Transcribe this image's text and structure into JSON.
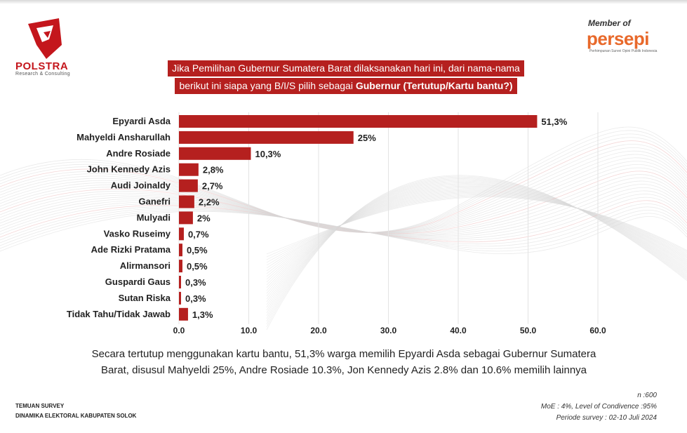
{
  "brand": {
    "name": "POLSTRA",
    "tagline": "Research & Consulting",
    "color": "#c4161c"
  },
  "member": {
    "label": "Member of",
    "org": "persepi",
    "org_sub": "Perhimpunan Survei Opini Publik Indonesia"
  },
  "title": {
    "line1": "Jika Pemilihan Gubernur Sumatera Barat dilaksanakan hari ini, dari nama-nama",
    "line2_pre": "berikut ini siapa yang B/I/S pilih sebagai ",
    "line2_bold": "Gubernur",
    "line2_post": "  (Tertutup/Kartu bantu?)"
  },
  "chart_data": {
    "type": "bar",
    "orientation": "horizontal",
    "categories": [
      "Epyardi Asda",
      "Mahyeldi Ansharullah",
      "Andre Rosiade",
      "John Kennedy Azis",
      "Audi Joinaldy",
      "Ganefri",
      "Mulyadi",
      "Vasko Ruseimy",
      "Ade Rizki Pratama",
      "Alirmansori",
      "Guspardi Gaus",
      "Sutan Riska",
      "Tidak Tahu/Tidak Jawab"
    ],
    "values": [
      51.3,
      25,
      10.3,
      2.8,
      2.7,
      2.2,
      2,
      0.7,
      0.5,
      0.5,
      0.3,
      0.3,
      1.3
    ],
    "value_labels": [
      "51,3%",
      "25%",
      "10,3%",
      "2,8%",
      "2,7%",
      "2,2%",
      "2%",
      "0,7%",
      "0,5%",
      "0,5%",
      "0,3%",
      "0,3%",
      "1,3%"
    ],
    "xlim": [
      0,
      60
    ],
    "x_ticks": [
      "0.0",
      "10.0",
      "20.0",
      "30.0",
      "40.0",
      "50.0",
      "60.0"
    ],
    "grid": true,
    "bar_color": "#b5201f"
  },
  "summary": {
    "line1": "Secara tertutup menggunakan kartu bantu, 51,3% warga memilih Epyardi Asda sebagai Gubernur Sumatera",
    "line2": "Barat, disusul Mahyeldi 25%, Andre Rosiade 10.3%, Jon Kennedy Azis 2.8% dan 10.6% memilih lainnya"
  },
  "footer": {
    "left_line1": "TEMUAN SURVEY",
    "left_line2": "DINAMIKA ELEKTORAL KABUPATEN SOLOK",
    "n": "n :600",
    "moe": "MoE : 4%, Level of Condivence :95%",
    "period": "Periode survey : 02-10 Juli 2024"
  }
}
